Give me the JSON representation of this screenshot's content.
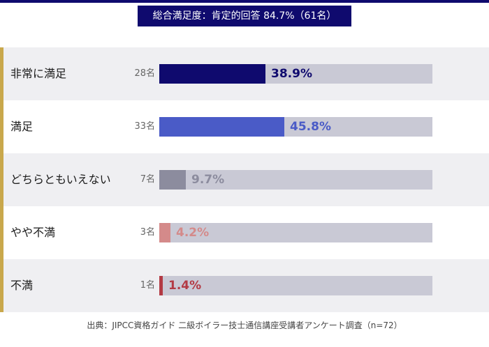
{
  "header": {
    "title": "総合満足度：肯定的回答 84.7%（61名）"
  },
  "footer": {
    "source": "出典：JIPCC資格ガイド 二級ボイラー技士通信講座受講者アンケート調査（n=72）"
  },
  "colors": {
    "header_bg": "#0f0a6e",
    "accent": "#c9a84c",
    "track": "#c9c9d5",
    "band_shade": "#efeff2"
  },
  "chart_data": {
    "type": "bar",
    "orientation": "horizontal",
    "title": "総合満足度：肯定的回答 84.7%（61名）",
    "xlim": [
      0,
      100
    ],
    "categories": [
      "非常に満足",
      "満足",
      "どちらともいえない",
      "やや不満",
      "不満"
    ],
    "counts": [
      "28名",
      "33名",
      "7名",
      "3名",
      "1名"
    ],
    "values": [
      38.9,
      45.8,
      9.7,
      4.2,
      1.4
    ],
    "value_labels": [
      "38.9%",
      "45.8%",
      "9.7%",
      "4.2%",
      "1.4%"
    ],
    "bar_colors": [
      "#0f0a6e",
      "#4a5bc7",
      "#8c8c9e",
      "#d48a8a",
      "#b33a44"
    ],
    "label_colors": [
      "#0f0a6e",
      "#4a5bc7",
      "#8c8c9e",
      "#d48a8a",
      "#b33a44"
    ]
  }
}
